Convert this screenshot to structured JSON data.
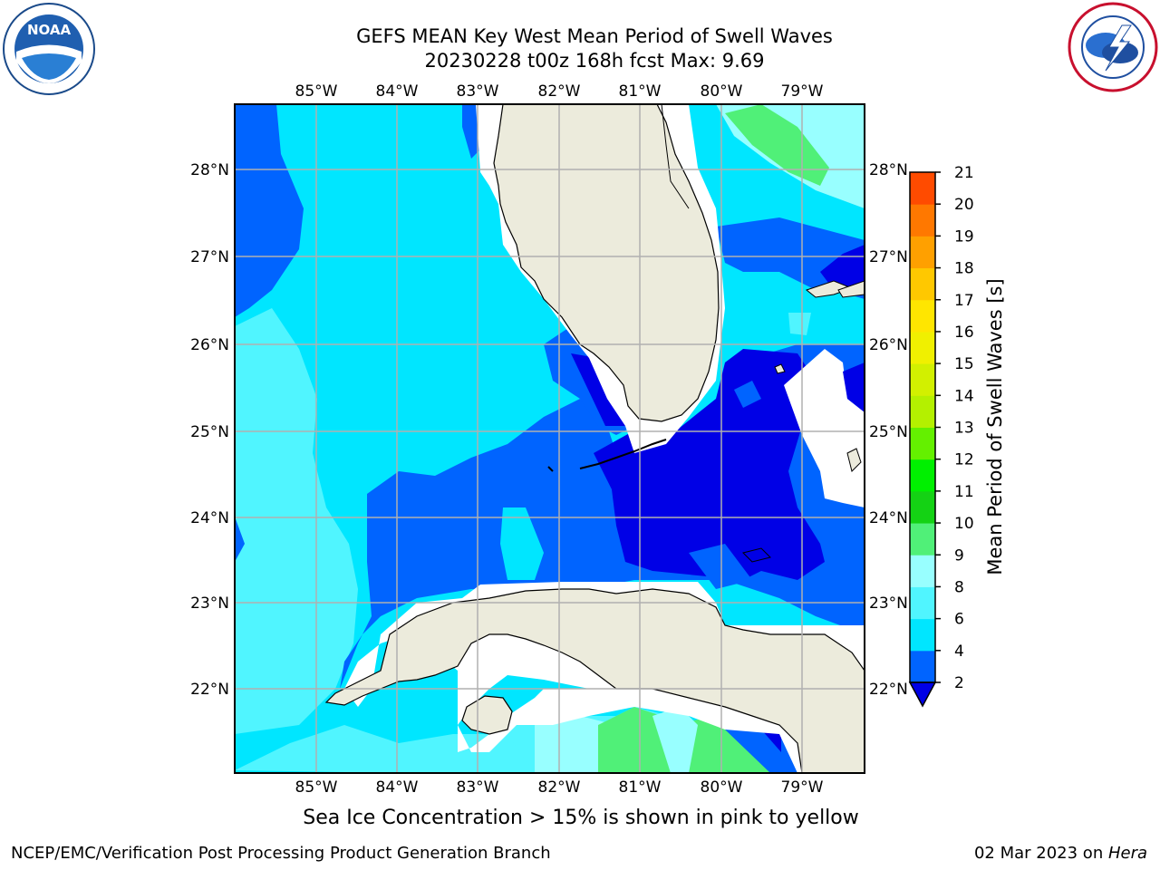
{
  "title_line1": "GEFS MEAN Key West Mean Period of Swell Waves",
  "title_line2": "20230228 t00z 168h fcst   Max: 9.69",
  "caption": "Sea Ice Concentration > 15% is shown in pink to yellow",
  "footer": {
    "left": "NCEP/EMC/Verification Post Processing Product Generation Branch",
    "right_date": "02 Mar 2023 on ",
    "right_host": "Hera"
  },
  "map": {
    "lon_labels": [
      "85°W",
      "84°W",
      "83°W",
      "82°W",
      "81°W",
      "80°W",
      "79°W"
    ],
    "lat_labels": [
      "28°N",
      "27°N",
      "26°N",
      "25°N",
      "24°N",
      "23°N",
      "22°N"
    ]
  },
  "colorbar": {
    "label": "Mean Period of Swell Waves [s]",
    "ticks": [
      2,
      4,
      6,
      8,
      9,
      10,
      11,
      12,
      13,
      14,
      15,
      16,
      17,
      18,
      19,
      20,
      21
    ],
    "colors": [
      "#0064ff",
      "#00e6ff",
      "#50f5ff",
      "#98ffff",
      "#50f078",
      "#14d214",
      "#00f000",
      "#64f000",
      "#b4f000",
      "#d2f000",
      "#f0f000",
      "#ffe600",
      "#ffc800",
      "#ffa000",
      "#ff7800",
      "#ff4b00",
      "#ff0000"
    ],
    "under_color": "#0000e6"
  },
  "logos": {
    "left": "noaa-logo-icon",
    "right": "nws-logo-icon"
  }
}
